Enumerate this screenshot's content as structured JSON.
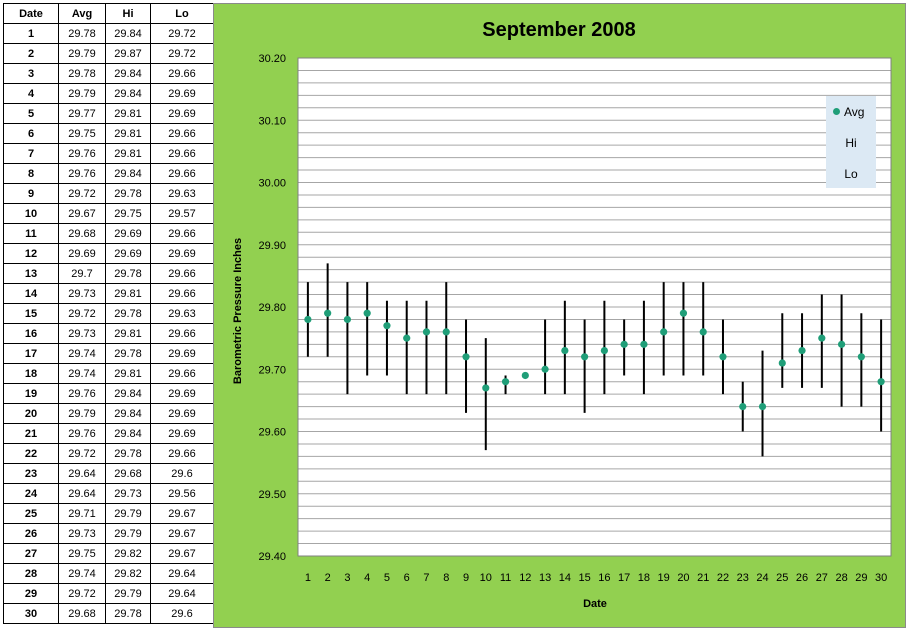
{
  "table": {
    "headers": [
      "Date",
      "Avg",
      "Hi",
      "Lo"
    ],
    "rows": [
      [
        "1",
        "29.78",
        "29.84",
        "29.72"
      ],
      [
        "2",
        "29.79",
        "29.87",
        "29.72"
      ],
      [
        "3",
        "29.78",
        "29.84",
        "29.66"
      ],
      [
        "4",
        "29.79",
        "29.84",
        "29.69"
      ],
      [
        "5",
        "29.77",
        "29.81",
        "29.69"
      ],
      [
        "6",
        "29.75",
        "29.81",
        "29.66"
      ],
      [
        "7",
        "29.76",
        "29.81",
        "29.66"
      ],
      [
        "8",
        "29.76",
        "29.84",
        "29.66"
      ],
      [
        "9",
        "29.72",
        "29.78",
        "29.63"
      ],
      [
        "10",
        "29.67",
        "29.75",
        "29.57"
      ],
      [
        "11",
        "29.68",
        "29.69",
        "29.66"
      ],
      [
        "12",
        "29.69",
        "29.69",
        "29.69"
      ],
      [
        "13",
        "29.7",
        "29.78",
        "29.66"
      ],
      [
        "14",
        "29.73",
        "29.81",
        "29.66"
      ],
      [
        "15",
        "29.72",
        "29.78",
        "29.63"
      ],
      [
        "16",
        "29.73",
        "29.81",
        "29.66"
      ],
      [
        "17",
        "29.74",
        "29.78",
        "29.69"
      ],
      [
        "18",
        "29.74",
        "29.81",
        "29.66"
      ],
      [
        "19",
        "29.76",
        "29.84",
        "29.69"
      ],
      [
        "20",
        "29.79",
        "29.84",
        "29.69"
      ],
      [
        "21",
        "29.76",
        "29.84",
        "29.69"
      ],
      [
        "22",
        "29.72",
        "29.78",
        "29.66"
      ],
      [
        "23",
        "29.64",
        "29.68",
        "29.6"
      ],
      [
        "24",
        "29.64",
        "29.73",
        "29.56"
      ],
      [
        "25",
        "29.71",
        "29.79",
        "29.67"
      ],
      [
        "26",
        "29.73",
        "29.79",
        "29.67"
      ],
      [
        "27",
        "29.75",
        "29.82",
        "29.67"
      ],
      [
        "28",
        "29.74",
        "29.82",
        "29.64"
      ],
      [
        "29",
        "29.72",
        "29.79",
        "29.64"
      ],
      [
        "30",
        "29.68",
        "29.78",
        "29.6"
      ]
    ]
  },
  "chart_data": {
    "type": "line",
    "title": "September 2008",
    "xlabel": "Date",
    "ylabel": "Barometric Pressure Inches",
    "x": [
      1,
      2,
      3,
      4,
      5,
      6,
      7,
      8,
      9,
      10,
      11,
      12,
      13,
      14,
      15,
      16,
      17,
      18,
      19,
      20,
      21,
      22,
      23,
      24,
      25,
      26,
      27,
      28,
      29,
      30
    ],
    "ylim": [
      29.4,
      30.2
    ],
    "yticks": [
      "29.40",
      "29.50",
      "29.60",
      "29.70",
      "29.80",
      "29.90",
      "30.00",
      "30.10",
      "30.20"
    ],
    "minor_grid_step": 0.02,
    "grid": true,
    "legend": {
      "position": "right",
      "entries": [
        "Avg",
        "Hi",
        "Lo"
      ]
    },
    "series": [
      {
        "name": "Avg",
        "color": "#1f9e78",
        "marker": "circle",
        "values": [
          29.78,
          29.79,
          29.78,
          29.79,
          29.77,
          29.75,
          29.76,
          29.76,
          29.72,
          29.67,
          29.68,
          29.69,
          29.7,
          29.73,
          29.72,
          29.73,
          29.74,
          29.74,
          29.76,
          29.79,
          29.76,
          29.72,
          29.64,
          29.64,
          29.71,
          29.73,
          29.75,
          29.74,
          29.72,
          29.68
        ]
      },
      {
        "name": "Hi",
        "values": [
          29.84,
          29.87,
          29.84,
          29.84,
          29.81,
          29.81,
          29.81,
          29.84,
          29.78,
          29.75,
          29.69,
          29.69,
          29.78,
          29.81,
          29.78,
          29.81,
          29.78,
          29.81,
          29.84,
          29.84,
          29.84,
          29.78,
          29.68,
          29.73,
          29.79,
          29.79,
          29.82,
          29.82,
          29.79,
          29.78
        ]
      },
      {
        "name": "Lo",
        "values": [
          29.72,
          29.72,
          29.66,
          29.69,
          29.69,
          29.66,
          29.66,
          29.66,
          29.63,
          29.57,
          29.66,
          29.69,
          29.66,
          29.66,
          29.63,
          29.66,
          29.69,
          29.66,
          29.69,
          29.69,
          29.69,
          29.66,
          29.6,
          29.56,
          29.67,
          29.67,
          29.67,
          29.64,
          29.64,
          29.6
        ]
      }
    ],
    "hilo_line_color": "#000000",
    "plot_background": "#ffffff",
    "chart_background": "#92d050"
  }
}
